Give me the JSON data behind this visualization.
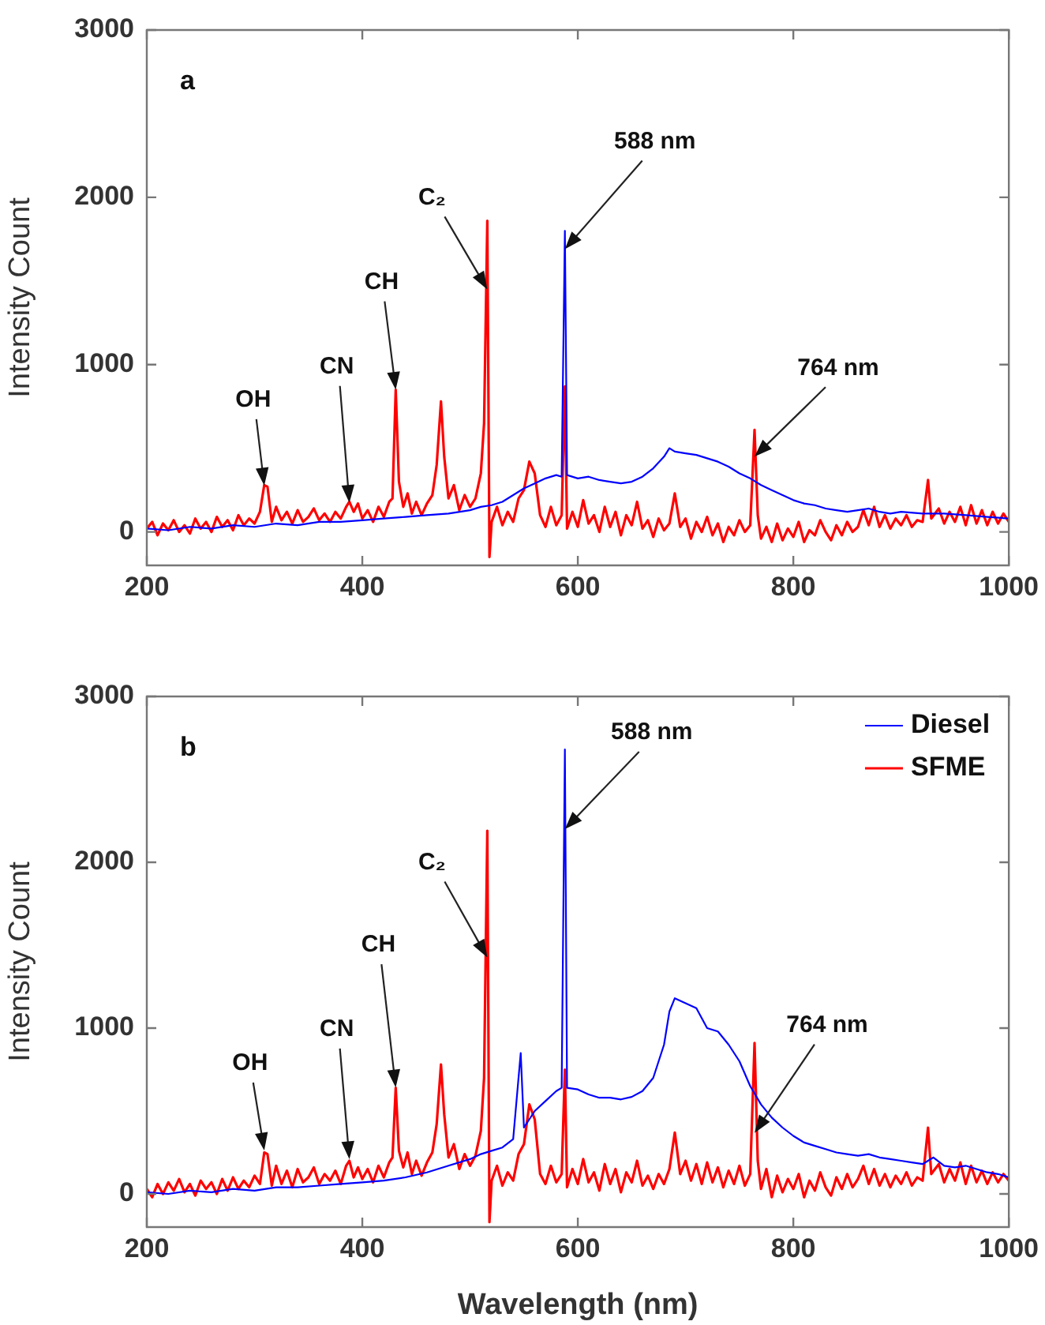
{
  "chart_data": [
    {
      "type": "line",
      "title": "a",
      "ylabel": "Intensity Count",
      "xlim": [
        200,
        1000
      ],
      "xticks": [
        200,
        400,
        600,
        800,
        1000
      ],
      "ylim": [
        -200,
        3000
      ],
      "yticks": [
        0,
        1000,
        2000,
        3000
      ],
      "grid": false,
      "marker": "none",
      "line_style": "solid",
      "series": [
        {
          "color": "#0000ff",
          "x": [
            200,
            220,
            240,
            260,
            280,
            300,
            320,
            340,
            360,
            380,
            400,
            420,
            440,
            460,
            480,
            500,
            510,
            520,
            530,
            540,
            550,
            560,
            570,
            580,
            585,
            588,
            590,
            600,
            610,
            620,
            630,
            640,
            650,
            660,
            670,
            680,
            685,
            690,
            700,
            710,
            720,
            730,
            740,
            750,
            760,
            770,
            780,
            790,
            800,
            810,
            820,
            830,
            840,
            850,
            860,
            870,
            880,
            890,
            900,
            920,
            940,
            960,
            980,
            1000
          ],
          "values": [
            20,
            10,
            30,
            20,
            40,
            30,
            50,
            40,
            60,
            60,
            70,
            80,
            90,
            100,
            110,
            130,
            150,
            160,
            180,
            220,
            260,
            290,
            320,
            340,
            330,
            1800,
            340,
            320,
            330,
            310,
            300,
            290,
            300,
            330,
            380,
            450,
            500,
            480,
            470,
            460,
            440,
            420,
            390,
            350,
            320,
            280,
            250,
            220,
            190,
            170,
            160,
            140,
            130,
            120,
            130,
            140,
            120,
            110,
            120,
            110,
            110,
            100,
            90,
            80
          ]
        },
        {
          "color": "#ff0000",
          "x": [
            200,
            205,
            210,
            215,
            220,
            225,
            230,
            235,
            240,
            245,
            250,
            255,
            260,
            265,
            270,
            275,
            280,
            285,
            290,
            295,
            300,
            305,
            309,
            312,
            316,
            320,
            325,
            330,
            335,
            340,
            345,
            350,
            355,
            360,
            365,
            370,
            375,
            380,
            385,
            388,
            392,
            396,
            400,
            405,
            410,
            415,
            420,
            425,
            428,
            431,
            434,
            438,
            442,
            446,
            450,
            455,
            460,
            465,
            469,
            473,
            476,
            480,
            485,
            490,
            495,
            500,
            505,
            510,
            513,
            516,
            518,
            520,
            525,
            530,
            535,
            540,
            545,
            550,
            555,
            560,
            565,
            570,
            575,
            580,
            585,
            588,
            590,
            595,
            600,
            605,
            610,
            615,
            620,
            625,
            630,
            635,
            640,
            645,
            650,
            655,
            660,
            665,
            670,
            675,
            680,
            685,
            690,
            695,
            700,
            705,
            710,
            715,
            720,
            725,
            730,
            735,
            740,
            745,
            750,
            755,
            760,
            764,
            767,
            770,
            775,
            780,
            785,
            790,
            795,
            800,
            805,
            810,
            815,
            820,
            825,
            830,
            835,
            840,
            845,
            850,
            855,
            860,
            865,
            870,
            875,
            880,
            885,
            890,
            895,
            900,
            905,
            910,
            915,
            920,
            925,
            928,
            935,
            940,
            945,
            950,
            955,
            960,
            965,
            970,
            975,
            980,
            985,
            990,
            995,
            1000
          ],
          "values": [
            20,
            60,
            -20,
            50,
            10,
            70,
            0,
            40,
            -10,
            80,
            20,
            60,
            0,
            90,
            30,
            70,
            10,
            100,
            40,
            80,
            50,
            120,
            280,
            270,
            60,
            150,
            70,
            120,
            50,
            130,
            60,
            90,
            140,
            70,
            110,
            60,
            120,
            80,
            150,
            180,
            120,
            170,
            80,
            130,
            60,
            150,
            90,
            180,
            200,
            850,
            300,
            150,
            230,
            110,
            180,
            100,
            170,
            220,
            400,
            780,
            450,
            200,
            280,
            130,
            220,
            150,
            200,
            350,
            650,
            1860,
            -150,
            60,
            150,
            40,
            120,
            60,
            200,
            250,
            420,
            350,
            100,
            30,
            150,
            40,
            100,
            870,
            20,
            120,
            30,
            190,
            50,
            100,
            0,
            150,
            30,
            120,
            -20,
            100,
            40,
            180,
            20,
            70,
            -30,
            80,
            10,
            50,
            230,
            30,
            80,
            -40,
            60,
            0,
            90,
            -20,
            50,
            -60,
            30,
            -20,
            70,
            0,
            40,
            610,
            100,
            -40,
            30,
            -60,
            50,
            -50,
            20,
            -30,
            60,
            -60,
            10,
            -20,
            70,
            0,
            -50,
            40,
            -20,
            60,
            0,
            30,
            130,
            40,
            150,
            30,
            100,
            20,
            80,
            40,
            100,
            30,
            70,
            60,
            310,
            80,
            140,
            50,
            120,
            60,
            150,
            40,
            160,
            50,
            130,
            40,
            120,
            50,
            110,
            60
          ]
        }
      ],
      "annotations": [
        {
          "text": "OH",
          "x": 309,
          "y": 277
        },
        {
          "text": "CN",
          "x": 388,
          "y": 174
        },
        {
          "text": "CH",
          "x": 431,
          "y": 850
        },
        {
          "text": "C₂",
          "x": 516,
          "y": 1450
        },
        {
          "text": "588 nm",
          "x": 588,
          "y": 1690
        },
        {
          "text": "764 nm",
          "x": 764,
          "y": 450
        }
      ]
    },
    {
      "type": "line",
      "title": "b",
      "ylabel": "Intensity Count",
      "xlabel": "Wavelength (nm)",
      "xlim": [
        200,
        1000
      ],
      "xticks": [
        200,
        400,
        600,
        800,
        1000
      ],
      "ylim": [
        -200,
        3000
      ],
      "yticks": [
        0,
        1000,
        2000,
        3000
      ],
      "grid": false,
      "legend": "top right",
      "marker": "none",
      "line_style": "solid",
      "series": [
        {
          "name": "Diesel",
          "color": "#0000ff",
          "x": [
            200,
            220,
            240,
            260,
            280,
            300,
            320,
            340,
            360,
            380,
            400,
            420,
            440,
            460,
            480,
            500,
            510,
            520,
            530,
            540,
            547,
            550,
            560,
            570,
            580,
            585,
            588,
            590,
            600,
            610,
            620,
            630,
            640,
            650,
            660,
            670,
            680,
            685,
            690,
            700,
            710,
            720,
            730,
            740,
            750,
            760,
            770,
            780,
            790,
            800,
            810,
            820,
            830,
            840,
            850,
            860,
            870,
            880,
            890,
            900,
            910,
            920,
            930,
            940,
            950,
            960,
            970,
            980,
            990,
            1000
          ],
          "values": [
            10,
            0,
            20,
            10,
            30,
            20,
            40,
            40,
            50,
            60,
            70,
            80,
            100,
            130,
            170,
            210,
            240,
            260,
            280,
            330,
            850,
            400,
            500,
            560,
            620,
            640,
            2680,
            640,
            630,
            600,
            580,
            580,
            570,
            585,
            620,
            700,
            900,
            1100,
            1180,
            1150,
            1120,
            1000,
            980,
            900,
            800,
            650,
            540,
            460,
            400,
            350,
            310,
            290,
            270,
            250,
            240,
            230,
            240,
            220,
            210,
            200,
            190,
            180,
            220,
            170,
            160,
            170,
            150,
            130,
            120,
            100
          ]
        },
        {
          "name": "SFME",
          "color": "#ff0000",
          "x": [
            200,
            205,
            210,
            215,
            220,
            225,
            230,
            235,
            240,
            245,
            250,
            255,
            260,
            265,
            270,
            275,
            280,
            285,
            290,
            295,
            300,
            305,
            309,
            312,
            316,
            320,
            325,
            330,
            335,
            340,
            345,
            350,
            355,
            360,
            365,
            370,
            375,
            380,
            385,
            388,
            392,
            396,
            400,
            405,
            410,
            415,
            420,
            425,
            428,
            431,
            434,
            438,
            442,
            446,
            450,
            455,
            460,
            465,
            469,
            473,
            476,
            480,
            485,
            490,
            495,
            500,
            505,
            510,
            513,
            516,
            518,
            520,
            525,
            530,
            535,
            540,
            545,
            550,
            555,
            560,
            565,
            570,
            575,
            580,
            585,
            588,
            590,
            595,
            600,
            605,
            610,
            615,
            620,
            625,
            630,
            635,
            640,
            645,
            650,
            655,
            660,
            665,
            670,
            675,
            680,
            685,
            690,
            695,
            700,
            705,
            710,
            715,
            720,
            725,
            730,
            735,
            740,
            745,
            750,
            755,
            760,
            764,
            767,
            770,
            775,
            780,
            785,
            790,
            795,
            800,
            805,
            810,
            815,
            820,
            825,
            830,
            835,
            840,
            845,
            850,
            855,
            860,
            865,
            870,
            875,
            880,
            885,
            890,
            895,
            900,
            905,
            910,
            915,
            920,
            925,
            928,
            935,
            940,
            945,
            950,
            955,
            960,
            965,
            970,
            975,
            980,
            985,
            990,
            995,
            1000
          ],
          "values": [
            30,
            -20,
            60,
            0,
            70,
            20,
            90,
            10,
            60,
            -10,
            80,
            30,
            70,
            0,
            90,
            20,
            100,
            30,
            80,
            40,
            110,
            60,
            250,
            240,
            50,
            170,
            60,
            140,
            40,
            150,
            70,
            100,
            160,
            60,
            120,
            80,
            140,
            60,
            170,
            200,
            100,
            160,
            90,
            150,
            70,
            170,
            100,
            190,
            220,
            640,
            260,
            160,
            250,
            120,
            200,
            110,
            190,
            250,
            420,
            780,
            480,
            220,
            300,
            150,
            240,
            170,
            230,
            380,
            700,
            2190,
            -170,
            80,
            170,
            50,
            130,
            80,
            240,
            300,
            540,
            450,
            120,
            60,
            170,
            70,
            120,
            750,
            40,
            150,
            60,
            210,
            70,
            130,
            20,
            180,
            60,
            150,
            10,
            130,
            70,
            200,
            50,
            110,
            30,
            120,
            60,
            150,
            370,
            120,
            200,
            80,
            180,
            60,
            190,
            70,
            160,
            40,
            140,
            60,
            170,
            50,
            120,
            910,
            200,
            30,
            150,
            -20,
            110,
            10,
            90,
            30,
            120,
            -20,
            80,
            20,
            130,
            40,
            -10,
            100,
            30,
            120,
            40,
            90,
            170,
            60,
            150,
            50,
            120,
            40,
            110,
            60,
            130,
            50,
            100,
            80,
            400,
            120,
            180,
            70,
            150,
            80,
            190,
            60,
            170,
            70,
            140,
            60,
            130,
            70,
            120,
            80
          ]
        }
      ],
      "annotations": [
        {
          "text": "OH",
          "x": 309,
          "y": 262
        },
        {
          "text": "CN",
          "x": 388,
          "y": 210
        },
        {
          "text": "CH",
          "x": 431,
          "y": 642
        },
        {
          "text": "C₂",
          "x": 516,
          "y": 1426
        },
        {
          "text": "588 nm",
          "x": 588,
          "y": 2200
        },
        {
          "text": "764 nm",
          "x": 764,
          "y": 368
        }
      ]
    }
  ]
}
